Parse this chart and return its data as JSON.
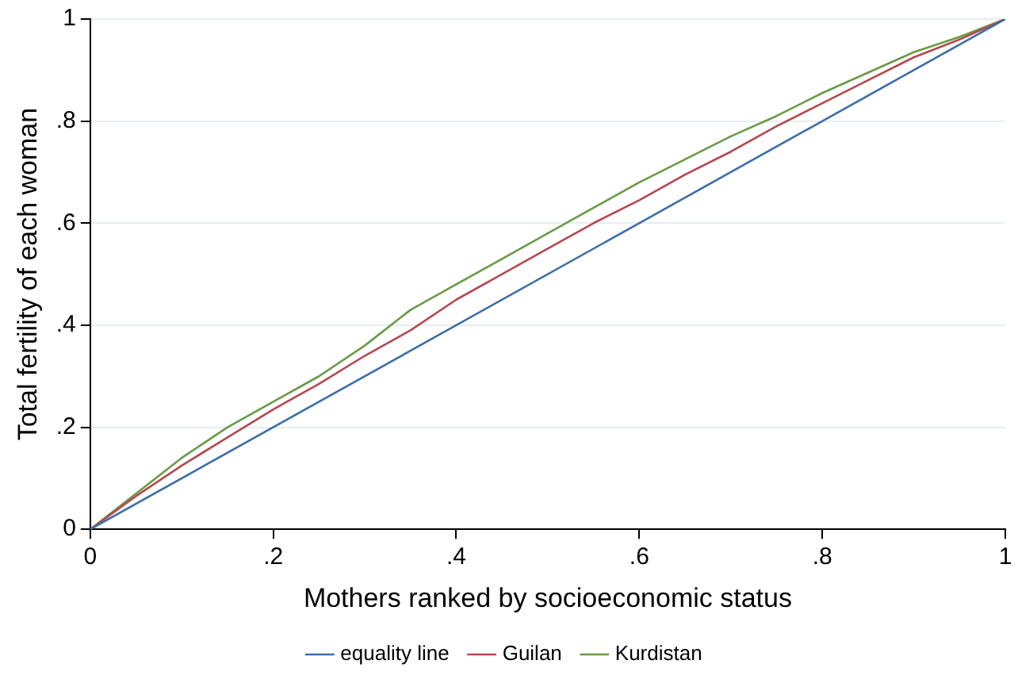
{
  "chart_data": {
    "type": "line",
    "xlabel": "Mothers ranked by socioeconomic status",
    "ylabel": "Total fertility of each woman",
    "xlim": [
      0,
      1
    ],
    "ylim": [
      0,
      1
    ],
    "xticks": [
      0,
      {
        "value": 0.2,
        "label": ".2"
      },
      {
        "value": 0.4,
        "label": ".4"
      },
      {
        "value": 0.6,
        "label": ".6"
      },
      {
        "value": 0.8,
        "label": ".8"
      },
      1
    ],
    "yticks": [
      0,
      {
        "value": 0.2,
        "label": ".2"
      },
      {
        "value": 0.4,
        "label": ".4"
      },
      {
        "value": 0.6,
        "label": ".6"
      },
      {
        "value": 0.8,
        "label": ".8"
      },
      1
    ],
    "grid": "y",
    "legend": "bottom",
    "marker": "none",
    "line_style": "solid",
    "series": [
      {
        "name": "equality line",
        "color": "#3b6ea8",
        "x": [
          0,
          1
        ],
        "values": [
          0,
          1
        ]
      },
      {
        "name": "Guilan",
        "color": "#b5484f",
        "x": [
          0,
          0.05,
          0.1,
          0.15,
          0.2,
          0.25,
          0.3,
          0.35,
          0.4,
          0.45,
          0.5,
          0.55,
          0.6,
          0.65,
          0.7,
          0.75,
          0.8,
          0.85,
          0.9,
          0.95,
          1
        ],
        "values": [
          0,
          0.065,
          0.125,
          0.18,
          0.235,
          0.285,
          0.34,
          0.39,
          0.45,
          0.5,
          0.55,
          0.6,
          0.645,
          0.695,
          0.74,
          0.79,
          0.835,
          0.88,
          0.925,
          0.96,
          1
        ]
      },
      {
        "name": "Kurdistan",
        "color": "#6a9a48",
        "x": [
          0,
          0.05,
          0.1,
          0.15,
          0.2,
          0.25,
          0.3,
          0.35,
          0.4,
          0.45,
          0.5,
          0.55,
          0.6,
          0.65,
          0.7,
          0.75,
          0.8,
          0.85,
          0.9,
          0.95,
          1
        ],
        "values": [
          0,
          0.07,
          0.14,
          0.2,
          0.25,
          0.3,
          0.36,
          0.43,
          0.48,
          0.53,
          0.58,
          0.63,
          0.68,
          0.725,
          0.77,
          0.81,
          0.855,
          0.895,
          0.935,
          0.965,
          1
        ]
      }
    ]
  }
}
